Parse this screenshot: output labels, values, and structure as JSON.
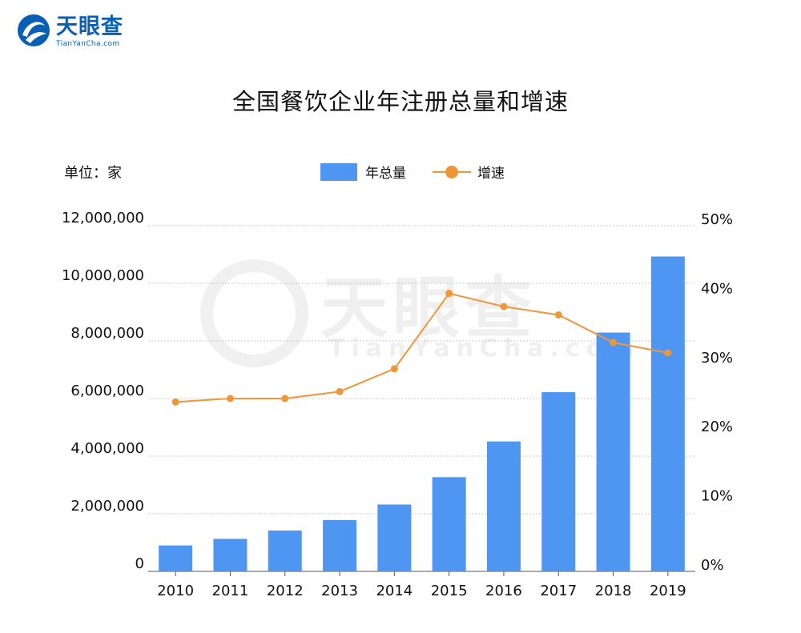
{
  "logo": {
    "name": "天眼查",
    "sub": "TianYanCha.com"
  },
  "watermark": {
    "name": "天眼查",
    "sub": "TianYanCha.com"
  },
  "unit_label": "单位：家",
  "colors": {
    "bar": "#4f96f3",
    "line": "#f0963a",
    "grid": "#c8c8c8",
    "brand": "#0a5fb4"
  },
  "chart_data": {
    "type": "bar",
    "title": "全国餐饮企业年注册总量和增速",
    "categories": [
      "2010",
      "2011",
      "2012",
      "2013",
      "2014",
      "2015",
      "2016",
      "2017",
      "2018",
      "2019"
    ],
    "series": [
      {
        "name": "年总量",
        "type": "bar",
        "axis": "left",
        "values": [
          900000,
          1130000,
          1420000,
          1780000,
          2320000,
          3270000,
          4510000,
          6220000,
          8290000,
          10930000
        ]
      },
      {
        "name": "增速",
        "type": "line",
        "axis": "right",
        "values": [
          24.5,
          25.0,
          25.0,
          26.0,
          29.3,
          40.2,
          38.3,
          37.1,
          33.1,
          31.6
        ]
      }
    ],
    "y_left": {
      "min": 0,
      "max": 12000000,
      "ticks": [
        "0",
        "2,000,000",
        "4,000,000",
        "6,000,000",
        "8,000,000",
        "10,000,000",
        "12,000,000"
      ]
    },
    "y_right": {
      "min": 0,
      "max": 50,
      "ticks": [
        "0%",
        "10%",
        "20%",
        "30%",
        "40%",
        "50%"
      ]
    },
    "grid": true,
    "legend_position": "top-center"
  }
}
